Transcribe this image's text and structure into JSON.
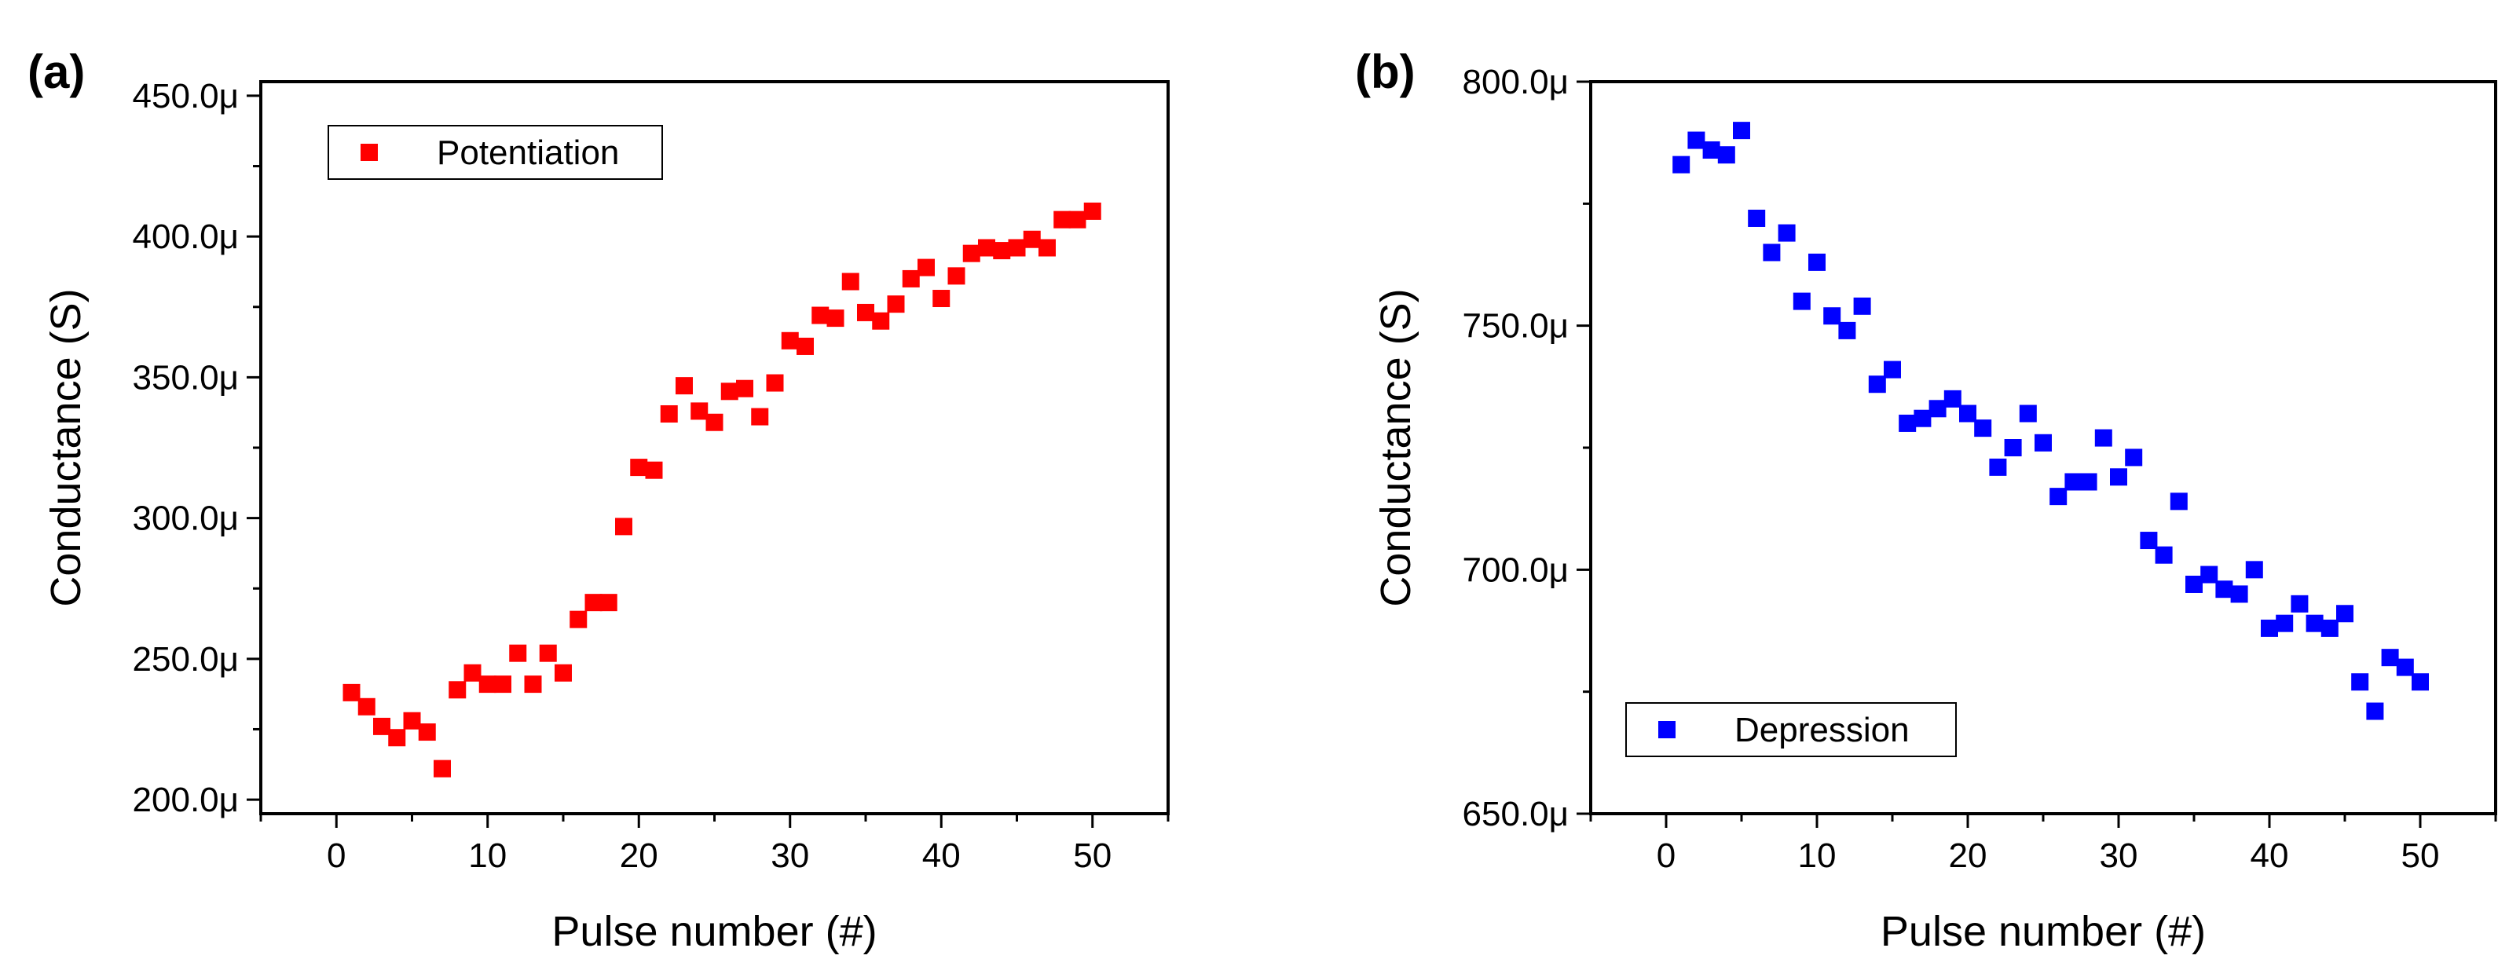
{
  "chart_data": [
    {
      "panel": "(a)",
      "type": "scatter",
      "xlabel": "Pulse number (#)",
      "ylabel": "Conductance (S)",
      "xlim": [
        -5,
        55
      ],
      "ylim": [
        195,
        455
      ],
      "xticks": [
        0,
        10,
        20,
        30,
        40,
        50
      ],
      "xtick_labels": [
        "0",
        "10",
        "20",
        "30",
        "40",
        "50"
      ],
      "yticks": [
        200,
        250,
        300,
        350,
        400,
        450
      ],
      "ytick_labels": [
        "200.0μ",
        "250.0μ",
        "300.0μ",
        "350.0μ",
        "400.0μ",
        "450.0μ"
      ],
      "legend": {
        "label": "Potentiation",
        "position": "top-left"
      },
      "series": [
        {
          "name": "Potentiation",
          "color": "#ff0000",
          "marker": "square",
          "unit": "μS",
          "x": [
            1,
            2,
            3,
            4,
            5,
            6,
            7,
            8,
            9,
            10,
            11,
            12,
            13,
            14,
            15,
            16,
            17,
            18,
            19,
            20,
            21,
            22,
            23,
            24,
            25,
            26,
            27,
            28,
            29,
            30,
            31,
            32,
            33,
            34,
            35,
            36,
            37,
            38,
            39,
            40,
            41,
            42,
            43,
            44,
            45,
            46,
            47,
            48,
            49,
            50
          ],
          "y": [
            238,
            233,
            226,
            222,
            228,
            224,
            211,
            239,
            245,
            241,
            241,
            252,
            241,
            252,
            245,
            264,
            270,
            270,
            297,
            318,
            317,
            337,
            347,
            338,
            334,
            345,
            346,
            336,
            348,
            363,
            361,
            372,
            371,
            384,
            373,
            370,
            376,
            385,
            389,
            378,
            386,
            394,
            396,
            395,
            396,
            399,
            396,
            406,
            406,
            409
          ]
        }
      ]
    },
    {
      "panel": "(b)",
      "type": "scatter",
      "xlabel": "Pulse number (#)",
      "ylabel": "Conductance (S)",
      "xlim": [
        -5,
        55
      ],
      "ylim": [
        650,
        800
      ],
      "xticks": [
        0,
        10,
        20,
        30,
        40,
        50
      ],
      "xtick_labels": [
        "0",
        "10",
        "20",
        "30",
        "40",
        "50"
      ],
      "yticks": [
        650,
        700,
        750,
        800
      ],
      "ytick_labels": [
        "650.0μ",
        "700.0μ",
        "750.0μ",
        "800.0μ"
      ],
      "legend": {
        "label": "Depression",
        "position": "bottom-left"
      },
      "series": [
        {
          "name": "Depression",
          "color": "#0000ff",
          "marker": "square",
          "unit": "μS",
          "x": [
            1,
            2,
            3,
            4,
            5,
            6,
            7,
            8,
            9,
            10,
            11,
            12,
            13,
            14,
            15,
            16,
            17,
            18,
            19,
            20,
            21,
            22,
            23,
            24,
            25,
            26,
            27,
            28,
            29,
            30,
            31,
            32,
            33,
            34,
            35,
            36,
            37,
            38,
            39,
            40,
            41,
            42,
            43,
            44,
            45,
            46,
            47,
            48,
            49,
            50
          ],
          "y": [
            783,
            788,
            786,
            785,
            790,
            772,
            765,
            769,
            755,
            763,
            752,
            749,
            754,
            738,
            741,
            730,
            731,
            733,
            735,
            732,
            729,
            721,
            725,
            732,
            726,
            715,
            718,
            718,
            727,
            719,
            723,
            706,
            703,
            714,
            697,
            699,
            696,
            695,
            700,
            688,
            689,
            693,
            689,
            688,
            691,
            677,
            671,
            682,
            680,
            677
          ]
        }
      ]
    }
  ]
}
